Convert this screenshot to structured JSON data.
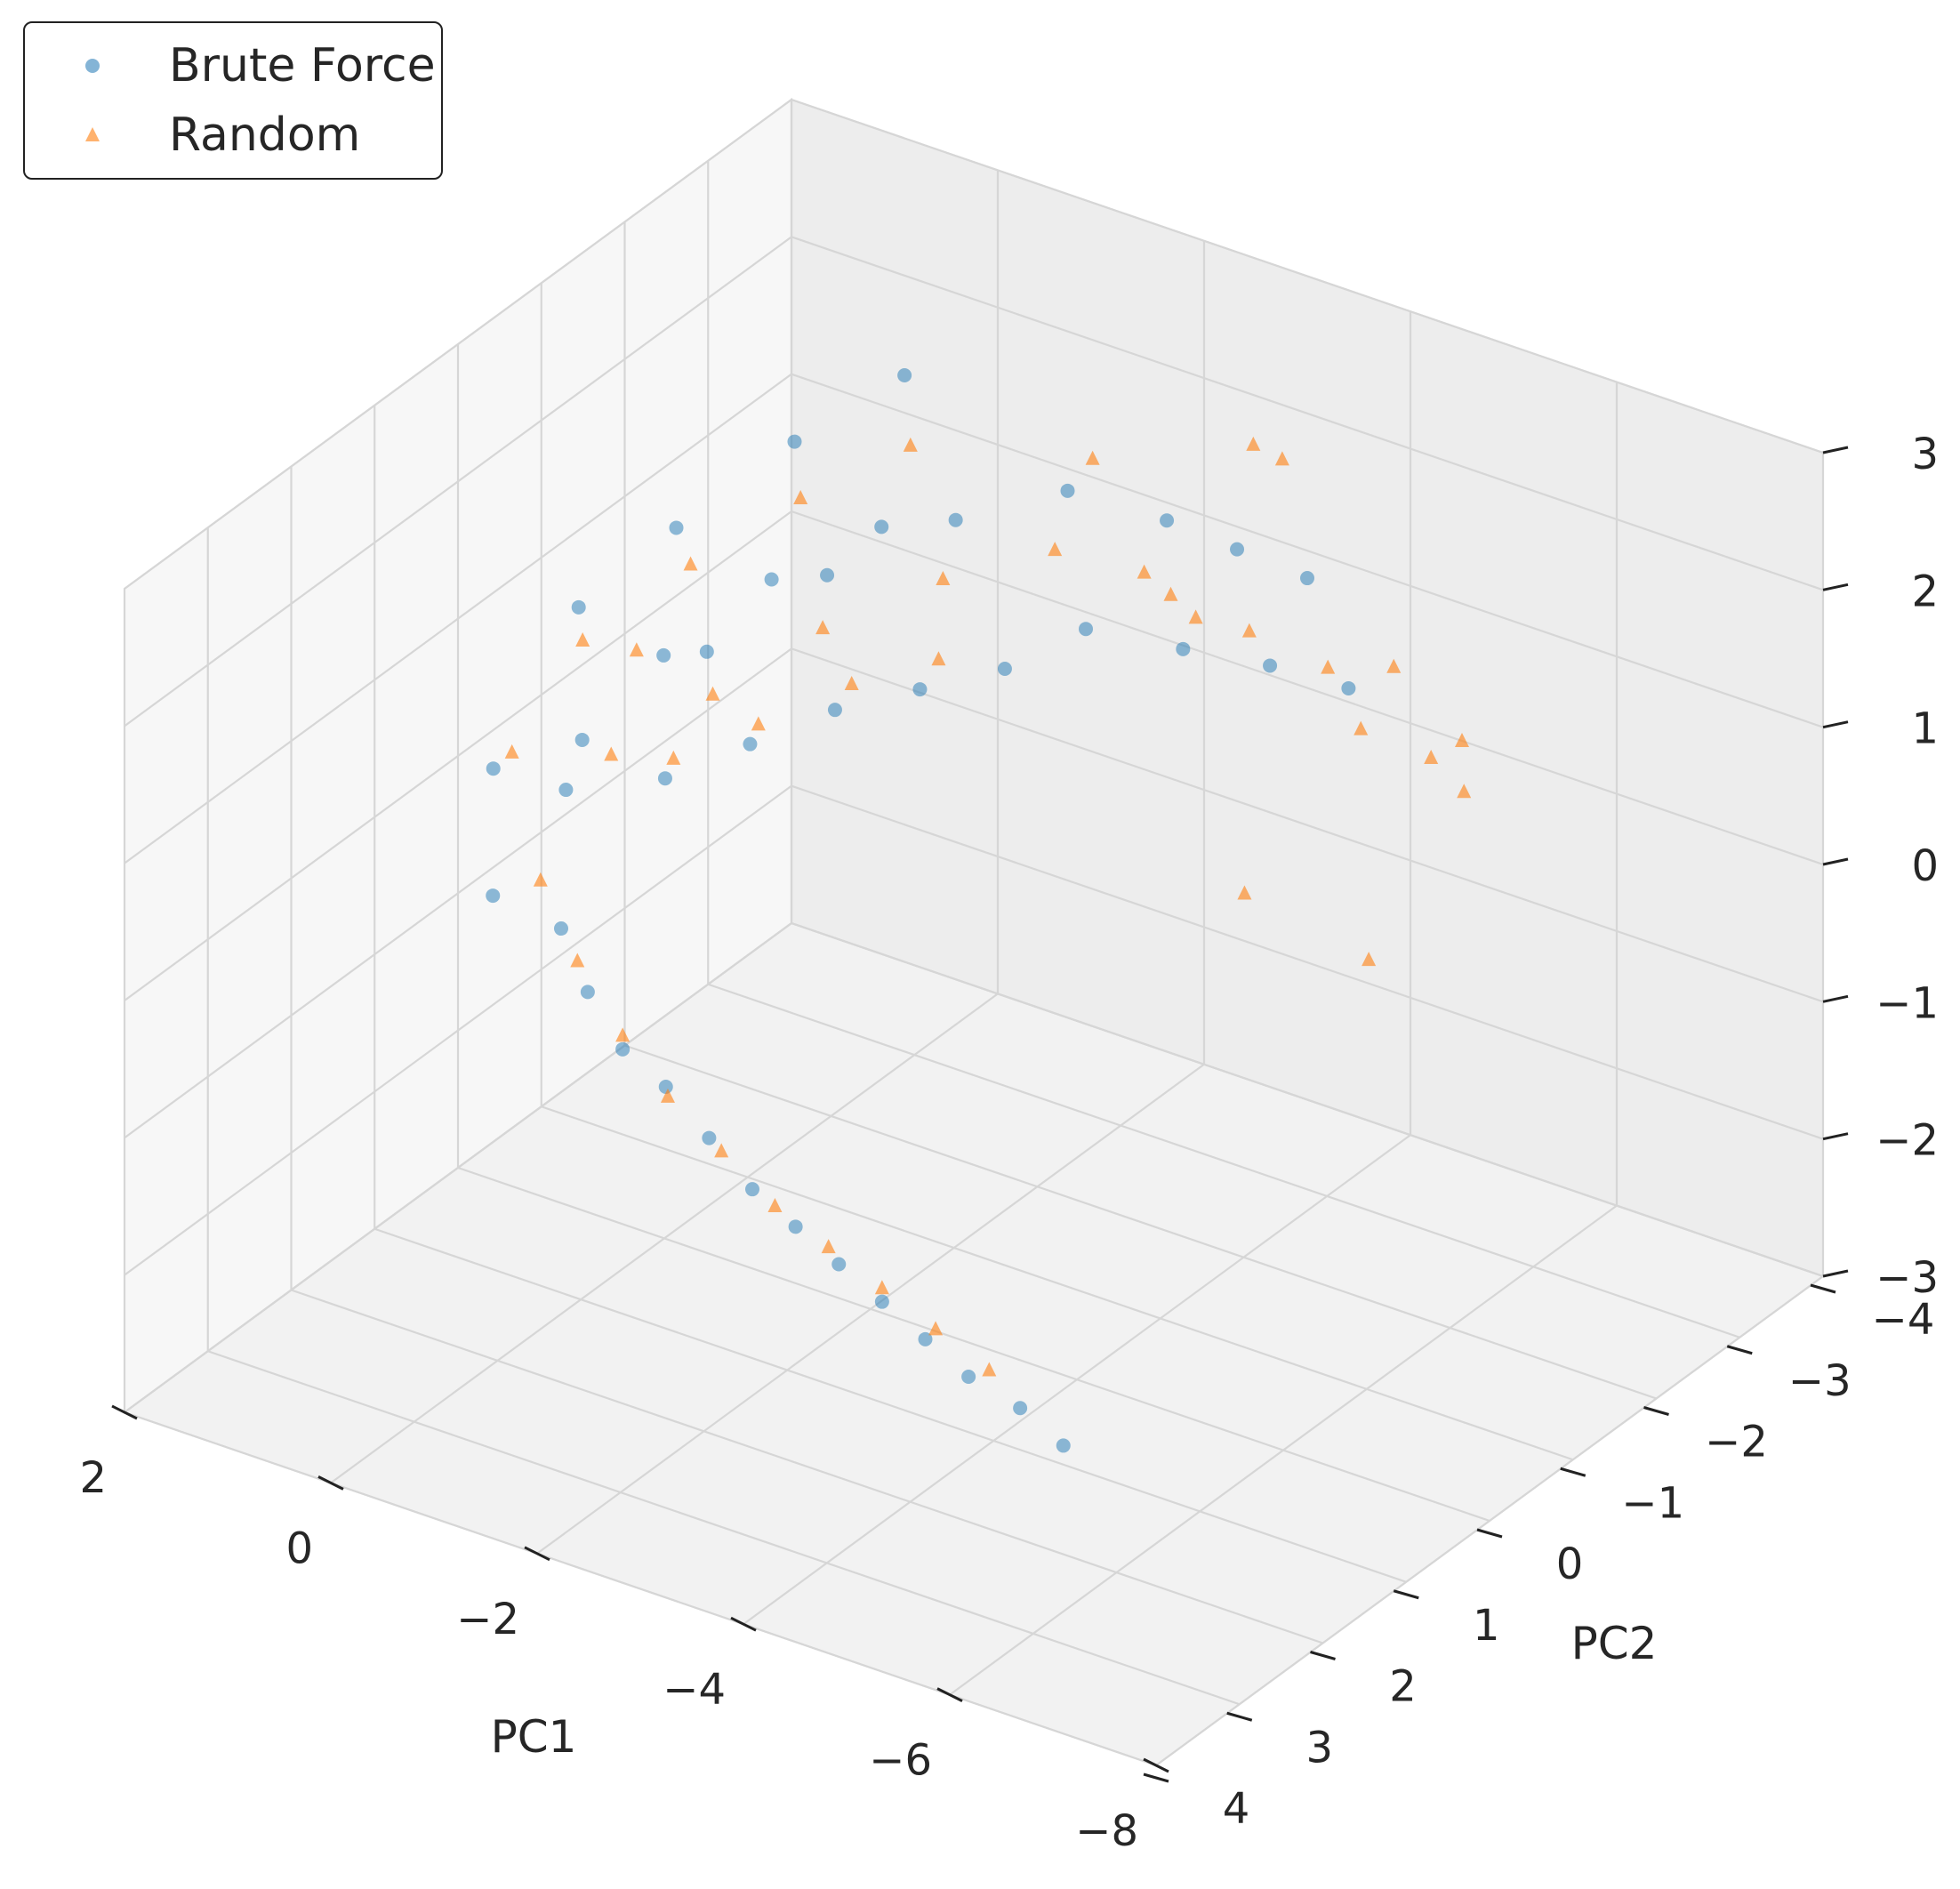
{
  "chart_data": {
    "type": "scatter",
    "projection": "3d",
    "title": "",
    "xlabel": "PC1",
    "ylabel": "PC2",
    "zlabel": "",
    "xlim": [
      -8,
      2
    ],
    "ylim": [
      -4,
      4
    ],
    "zlim": [
      -3,
      3
    ],
    "x_ticks": [
      "2",
      "0",
      "−2",
      "−4",
      "−6",
      "−8"
    ],
    "y_ticks": [
      "−4",
      "−3",
      "−2",
      "−1",
      "0",
      "1",
      "2",
      "3",
      "4"
    ],
    "z_ticks": [
      "3",
      "2",
      "1",
      "0",
      "−1",
      "−2",
      "−3"
    ],
    "x_tick_values": [
      2,
      0,
      -2,
      -4,
      -6,
      -8
    ],
    "y_tick_values": [
      -4,
      -3,
      -2,
      -1,
      0,
      1,
      2,
      3,
      4
    ],
    "z_tick_values": [
      3,
      2,
      1,
      0,
      -1,
      -2,
      -3
    ],
    "grid": true,
    "legend_position": "upper-left",
    "series": [
      {
        "name": "Brute Force",
        "marker": "circle",
        "color": "#1f77b4",
        "opacity": 0.5,
        "description_of_shape": "dense structured lattice: main block near PC1 -1..2, PC2 -4..0, plus diagonal stripes extending to PC2 ~ -4 and a tail down to PC1 ~ -5, PC2 ~ 1, z ~ -2",
        "points": [
          [
            1.8,
            -1.2,
            0.6
          ],
          [
            1.5,
            -2.0,
            0.9
          ],
          [
            1.0,
            -2.8,
            1.3
          ],
          [
            0.5,
            -3.5,
            1.6
          ],
          [
            1.2,
            -0.5,
            0.1
          ],
          [
            0.8,
            -1.5,
            0.4
          ],
          [
            0.2,
            -2.2,
            0.8
          ],
          [
            -0.4,
            -3.0,
            1.0
          ],
          [
            -1.0,
            -3.6,
            1.1
          ],
          [
            -1.8,
            -3.8,
            1.0
          ],
          [
            -2.4,
            -3.9,
            0.9
          ],
          [
            -3.0,
            -4.0,
            0.8
          ],
          [
            -1.5,
            -3.2,
            0.4
          ],
          [
            -2.2,
            -3.5,
            0.3
          ],
          [
            -2.8,
            -3.8,
            0.2
          ],
          [
            -3.4,
            -4.0,
            0.1
          ],
          [
            1.5,
            0.2,
            -0.8
          ],
          [
            1.0,
            0.0,
            -1.0
          ],
          [
            0.5,
            0.3,
            -1.2
          ],
          [
            0.0,
            0.5,
            -1.4
          ],
          [
            -0.5,
            0.6,
            -1.5
          ],
          [
            -1.0,
            0.7,
            -1.7
          ],
          [
            -1.5,
            0.8,
            -1.9
          ],
          [
            -2.0,
            0.9,
            -2.0
          ],
          [
            -2.5,
            1.0,
            -2.1
          ],
          [
            -3.0,
            1.1,
            -2.2
          ],
          [
            -3.5,
            1.2,
            -2.3
          ],
          [
            -4.0,
            1.3,
            -2.4
          ],
          [
            -4.5,
            1.3,
            -2.5
          ],
          [
            -5.0,
            1.4,
            -2.6
          ],
          [
            0.8,
            -1.0,
            -0.3
          ],
          [
            0.3,
            -1.4,
            -0.1
          ],
          [
            -0.2,
            -1.8,
            0.1
          ],
          [
            -0.7,
            -2.2,
            0.2
          ],
          [
            -1.2,
            -2.6,
            0.3
          ],
          [
            1.9,
            -0.3,
            -0.2
          ],
          [
            1.6,
            -0.8,
            -0.5
          ],
          [
            1.3,
            -1.6,
            0.2
          ],
          [
            0.9,
            -2.4,
            0.5
          ],
          [
            0.4,
            -3.1,
            0.7
          ]
        ]
      },
      {
        "name": "Random",
        "marker": "triangle",
        "color": "#ff7f0e",
        "opacity": 0.6,
        "description_of_shape": "dense cloud overlapping the brute force main block, plus scattered outliers toward PC2 -4 and z up to ~2",
        "points": [
          [
            1.6,
            -1.0,
            0.5
          ],
          [
            1.2,
            -1.8,
            0.8
          ],
          [
            0.7,
            -2.5,
            1.1
          ],
          [
            0.2,
            -3.2,
            1.3
          ],
          [
            1.0,
            -0.6,
            0.0
          ],
          [
            0.5,
            -1.2,
            0.3
          ],
          [
            0.0,
            -1.9,
            0.6
          ],
          [
            -0.6,
            -2.6,
            0.8
          ],
          [
            -1.2,
            -3.2,
            0.9
          ],
          [
            -2.0,
            -3.6,
            0.6
          ],
          [
            -2.6,
            -3.8,
            0.4
          ],
          [
            -3.2,
            -4.0,
            0.2
          ],
          [
            -3.6,
            -3.9,
            -0.1
          ],
          [
            -4.2,
            -4.0,
            -0.2
          ],
          [
            -4.6,
            -3.9,
            -0.3
          ],
          [
            -2.8,
            -3.6,
            1.9
          ],
          [
            -3.0,
            -3.7,
            1.8
          ],
          [
            -1.0,
            -3.9,
            1.2
          ],
          [
            -3.2,
            -3.0,
            -1.0
          ],
          [
            -4.0,
            -3.5,
            -1.5
          ],
          [
            1.2,
            0.0,
            -0.7
          ],
          [
            0.6,
            0.3,
            -1.0
          ],
          [
            0.0,
            0.5,
            -1.3
          ],
          [
            -0.6,
            0.7,
            -1.5
          ],
          [
            -1.2,
            0.8,
            -1.7
          ],
          [
            -1.8,
            0.9,
            -1.9
          ],
          [
            -2.4,
            1.0,
            -2.0
          ],
          [
            -3.0,
            1.1,
            -2.1
          ],
          [
            -3.6,
            1.2,
            -2.2
          ],
          [
            -4.2,
            1.3,
            -2.3
          ],
          [
            0.8,
            -1.1,
            -0.2
          ],
          [
            0.3,
            -1.5,
            0.0
          ],
          [
            -0.2,
            -2.0,
            0.2
          ],
          [
            -0.8,
            -2.3,
            0.4
          ],
          [
            1.8,
            -0.4,
            -0.1
          ],
          [
            1.4,
            -1.4,
            0.3
          ],
          [
            -1.5,
            -3.9,
            0.5
          ],
          [
            -2.0,
            -3.9,
            0.3
          ],
          [
            -4.0,
            -3.8,
            0.5
          ],
          [
            -4.5,
            -4.0,
            0.0
          ]
        ]
      }
    ]
  }
}
